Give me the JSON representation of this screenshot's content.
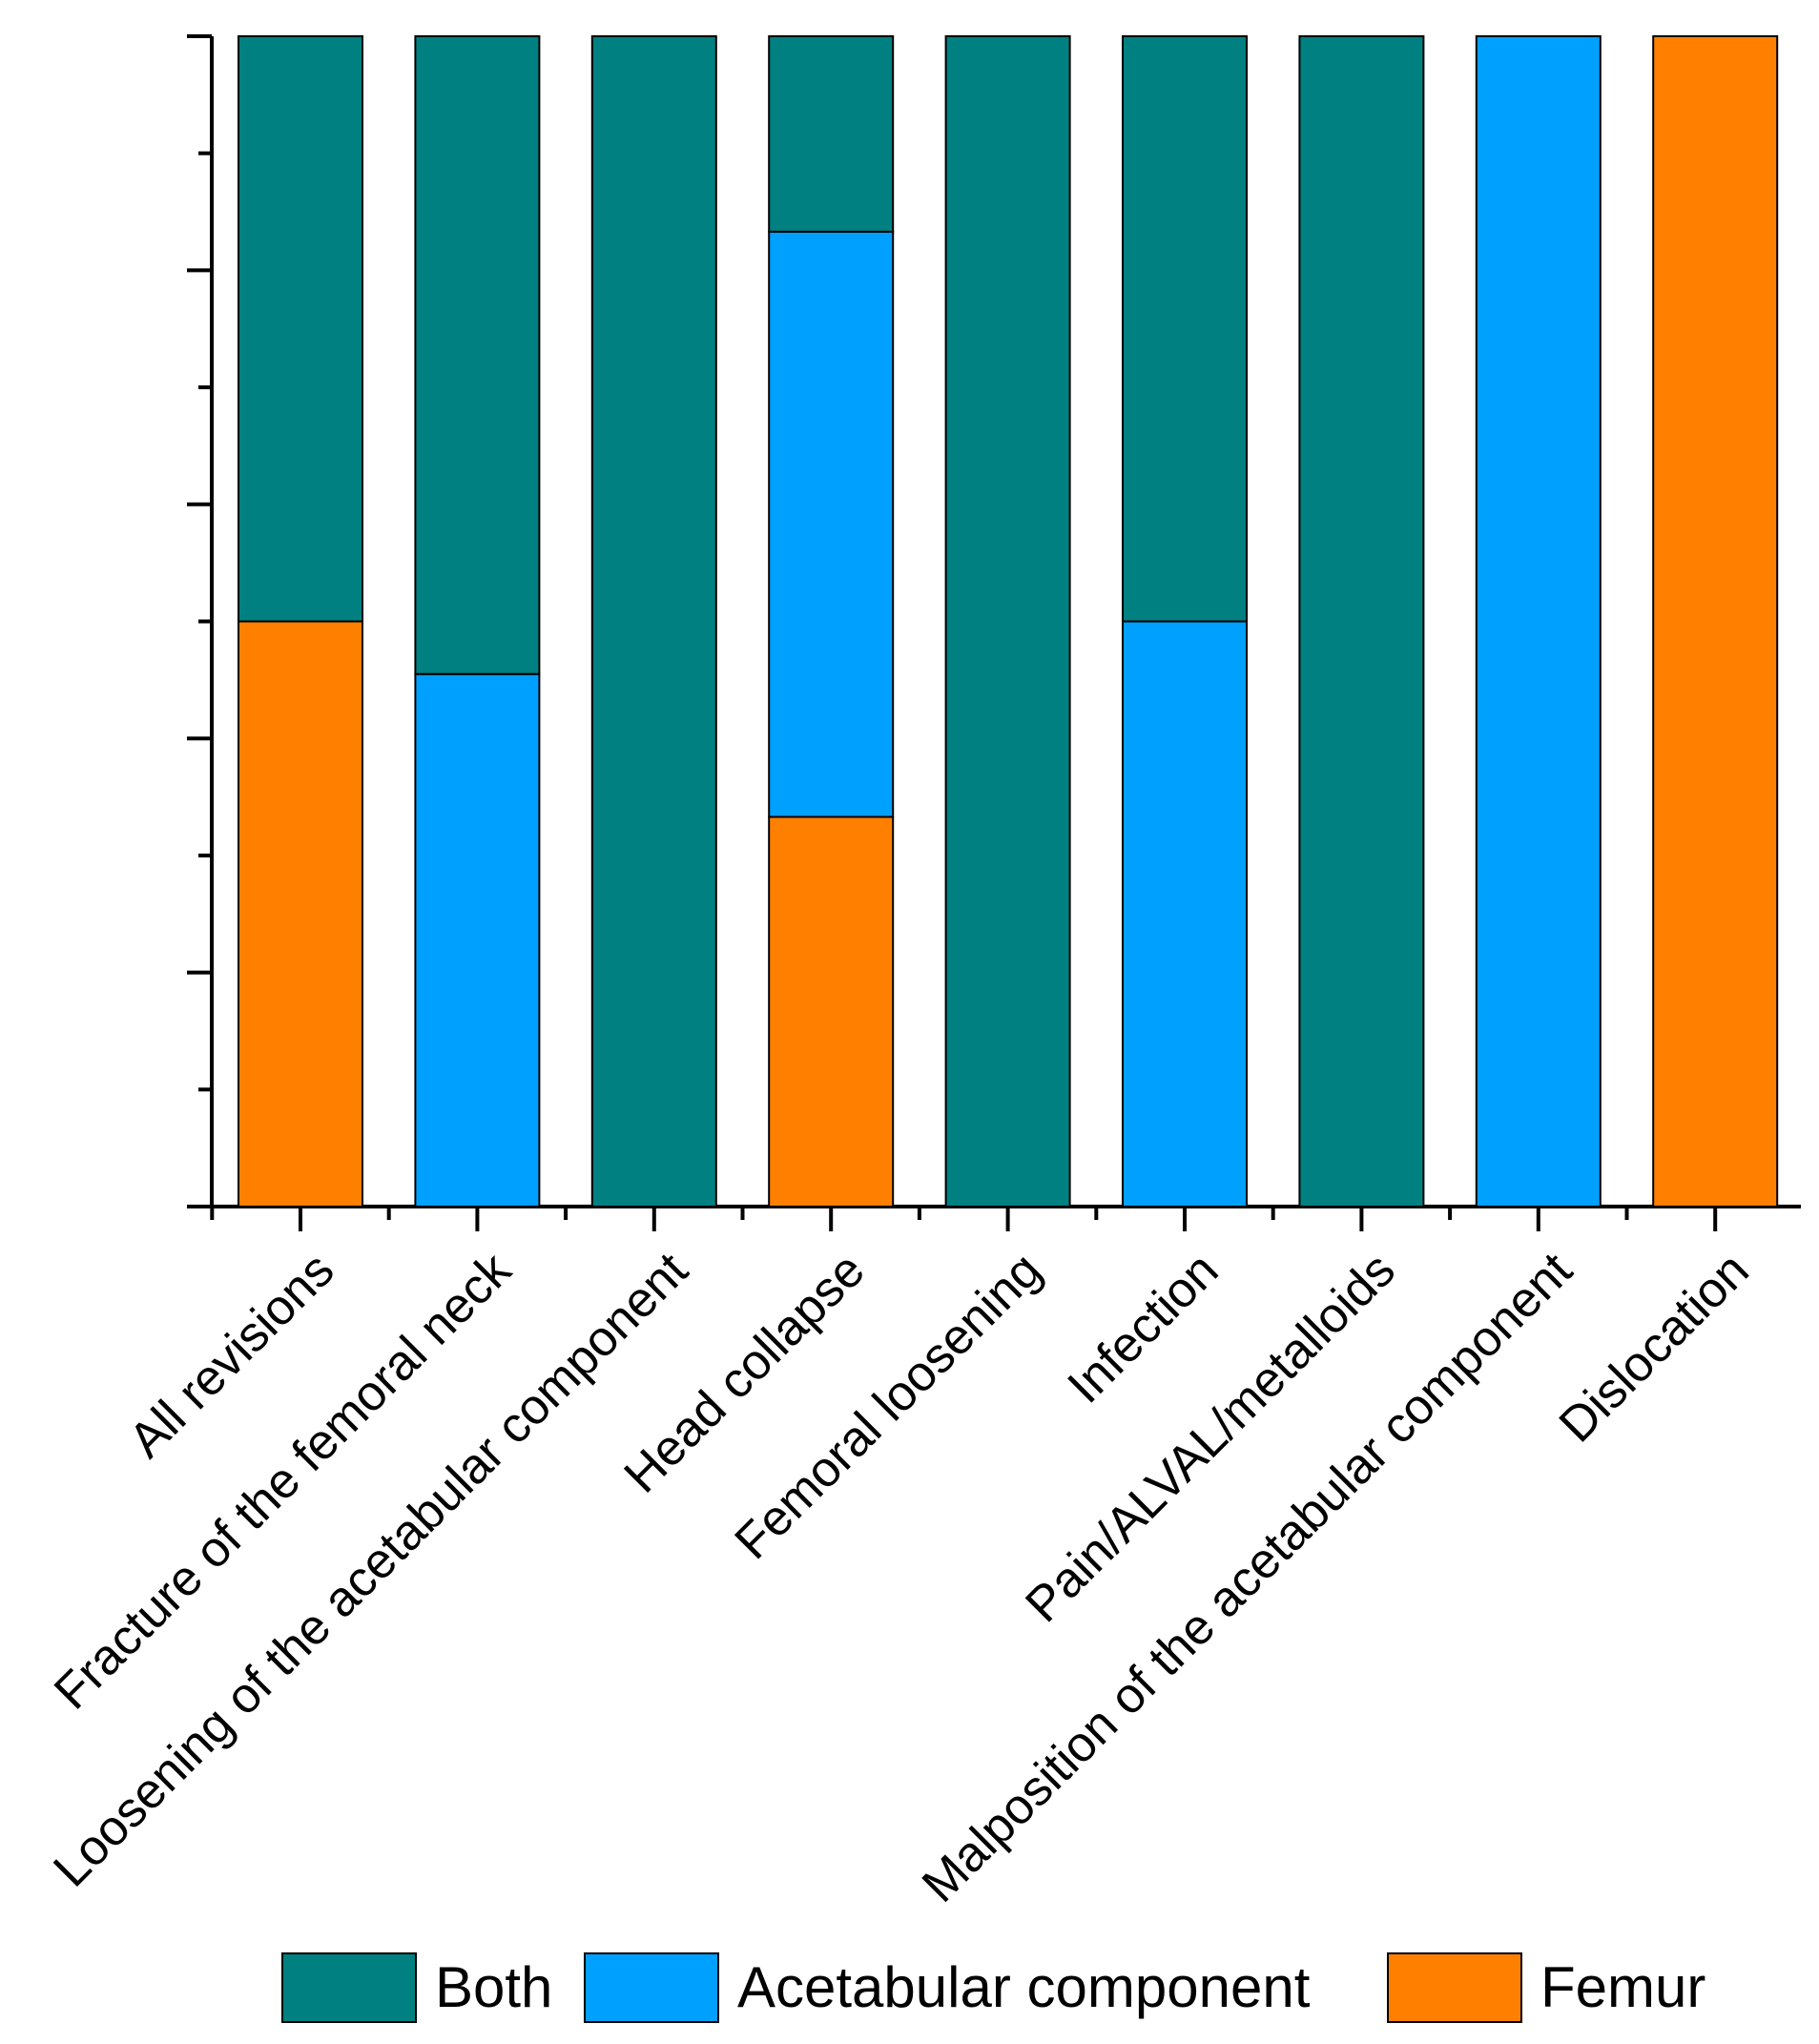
{
  "chart_data": {
    "type": "bar",
    "stacked": true,
    "percent": true,
    "title": "",
    "xlabel": "",
    "ylabel": "",
    "ylim": [
      0,
      100
    ],
    "y_ticks_labeled": false,
    "categories": [
      "All revisions",
      "Fracture of the femoral neck",
      "Loosening of the acetabular component",
      "Head collapse",
      "Femoral loosening",
      "Infection",
      "Pain/ALVAL/metalloids",
      "Malposition of the acetabular component",
      "Dislocation"
    ],
    "series": [
      {
        "name": "Femur",
        "color": "#FF8000",
        "values": [
          50,
          0,
          0,
          33.3,
          0,
          0,
          0,
          0,
          100
        ]
      },
      {
        "name": "Acetabular component",
        "color": "#00A0FF",
        "values": [
          0,
          45.5,
          0,
          50,
          0,
          50,
          0,
          100,
          0
        ]
      },
      {
        "name": "Both",
        "color": "#008080",
        "values": [
          50,
          54.5,
          100,
          16.7,
          100,
          50,
          100,
          0,
          0
        ]
      }
    ],
    "legend": {
      "placement": "bottom",
      "order": [
        "Both",
        "Acetabular component",
        "Femur"
      ]
    }
  }
}
